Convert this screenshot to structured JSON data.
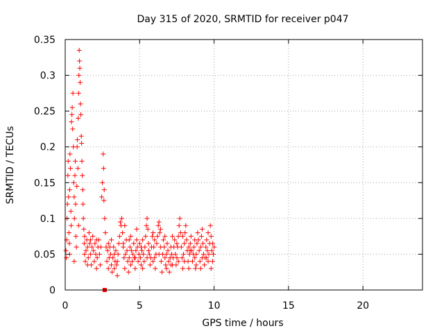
{
  "chart_data": {
    "type": "scatter",
    "title": "Day 315 of 2020, SRMTID for receiver p047",
    "xlabel": "GPS time / hours",
    "ylabel": "SRMTID / TECUs",
    "xlim": [
      0,
      24
    ],
    "ylim": [
      0,
      0.35
    ],
    "xticks": [
      0,
      5,
      10,
      15,
      20
    ],
    "xtick_labels": [
      "0",
      "5",
      "10",
      "15",
      "20"
    ],
    "yticks": [
      0,
      0.05,
      0.1,
      0.15,
      0.2,
      0.25,
      0.3,
      0.35
    ],
    "ytick_labels": [
      "0",
      "0.05",
      "0.1",
      "0.15",
      "0.2",
      "0.25",
      "0.3",
      "0.35"
    ],
    "grid": true,
    "marker": "+",
    "color": "#ff0000",
    "series": [
      {
        "name": "SRMTID",
        "points": [
          [
            0.05,
            0.055
          ],
          [
            0.08,
            0.045
          ],
          [
            0.1,
            0.07
          ],
          [
            0.12,
            0.1
          ],
          [
            0.15,
            0.12
          ],
          [
            0.18,
            0.16
          ],
          [
            0.2,
            0.18
          ],
          [
            0.22,
            0.13
          ],
          [
            0.25,
            0.08
          ],
          [
            0.28,
            0.065
          ],
          [
            0.3,
            0.14
          ],
          [
            0.32,
            0.19
          ],
          [
            0.35,
            0.17
          ],
          [
            0.38,
            0.11
          ],
          [
            0.4,
            0.09
          ],
          [
            0.42,
            0.235
          ],
          [
            0.45,
            0.245
          ],
          [
            0.47,
            0.255
          ],
          [
            0.5,
            0.225
          ],
          [
            0.52,
            0.275
          ],
          [
            0.55,
            0.2
          ],
          [
            0.57,
            0.15
          ],
          [
            0.6,
            0.13
          ],
          [
            0.62,
            0.1
          ],
          [
            0.65,
            0.16
          ],
          [
            0.68,
            0.18
          ],
          [
            0.7,
            0.12
          ],
          [
            0.72,
            0.075
          ],
          [
            0.75,
            0.06
          ],
          [
            0.78,
            0.145
          ],
          [
            0.8,
            0.2
          ],
          [
            0.82,
            0.21
          ],
          [
            0.85,
            0.17
          ],
          [
            0.87,
            0.24
          ],
          [
            0.9,
            0.275
          ],
          [
            0.92,
            0.3
          ],
          [
            0.94,
            0.335
          ],
          [
            0.96,
            0.32
          ],
          [
            0.98,
            0.31
          ],
          [
            1.0,
            0.29
          ],
          [
            1.02,
            0.26
          ],
          [
            1.05,
            0.245
          ],
          [
            1.08,
            0.215
          ],
          [
            1.1,
            0.205
          ],
          [
            1.12,
            0.18
          ],
          [
            1.15,
            0.16
          ],
          [
            1.18,
            0.14
          ],
          [
            1.2,
            0.12
          ],
          [
            1.22,
            0.1
          ],
          [
            1.25,
            0.085
          ],
          [
            1.28,
            0.065
          ],
          [
            1.3,
            0.05
          ],
          [
            1.35,
            0.04
          ],
          [
            1.4,
            0.055
          ],
          [
            1.45,
            0.07
          ],
          [
            1.5,
            0.06
          ],
          [
            1.55,
            0.045
          ],
          [
            1.6,
            0.08
          ],
          [
            1.65,
            0.065
          ],
          [
            1.7,
            0.05
          ],
          [
            1.75,
            0.035
          ],
          [
            1.8,
            0.06
          ],
          [
            1.85,
            0.075
          ],
          [
            1.9,
            0.055
          ],
          [
            1.95,
            0.04
          ],
          [
            2.0,
            0.065
          ],
          [
            2.05,
            0.05
          ],
          [
            2.1,
            0.03
          ],
          [
            2.15,
            0.045
          ],
          [
            2.2,
            0.06
          ],
          [
            2.25,
            0.07
          ],
          [
            2.3,
            0.05
          ],
          [
            2.35,
            0.035
          ],
          [
            2.4,
            0.06
          ],
          [
            2.45,
            0.13
          ],
          [
            2.5,
            0.15
          ],
          [
            2.55,
            0.19
          ],
          [
            2.58,
            0.17
          ],
          [
            2.6,
            0.125
          ],
          [
            2.62,
            0.14
          ],
          [
            2.65,
            0.1
          ],
          [
            2.7,
            0.08
          ],
          [
            2.75,
            0.06
          ],
          [
            2.8,
            0.04
          ],
          [
            2.85,
            0.055
          ],
          [
            2.9,
            0.03
          ],
          [
            2.95,
            0.045
          ],
          [
            3.0,
            0.06
          ],
          [
            3.05,
            0.05
          ],
          [
            3.1,
            0.035
          ],
          [
            3.15,
            0.025
          ],
          [
            3.2,
            0.045
          ],
          [
            3.25,
            0.06
          ],
          [
            3.3,
            0.05
          ],
          [
            3.35,
            0.04
          ],
          [
            3.4,
            0.055
          ],
          [
            3.45,
            0.035
          ],
          [
            3.5,
            0.02
          ],
          [
            3.55,
            0.05
          ],
          [
            3.6,
            0.065
          ],
          [
            3.65,
            0.075
          ],
          [
            3.7,
            0.095
          ],
          [
            3.75,
            0.09
          ],
          [
            3.8,
            0.1
          ],
          [
            3.85,
            0.08
          ],
          [
            3.9,
            0.06
          ],
          [
            3.95,
            0.045
          ],
          [
            4.0,
            0.03
          ],
          [
            4.05,
            0.05
          ],
          [
            4.1,
            0.07
          ],
          [
            4.15,
            0.055
          ],
          [
            4.2,
            0.04
          ],
          [
            4.25,
            0.025
          ],
          [
            4.3,
            0.045
          ],
          [
            4.35,
            0.06
          ],
          [
            4.4,
            0.075
          ],
          [
            4.45,
            0.055
          ],
          [
            4.5,
            0.04
          ],
          [
            4.55,
            0.05
          ],
          [
            4.6,
            0.065
          ],
          [
            4.65,
            0.045
          ],
          [
            4.7,
            0.03
          ],
          [
            4.75,
            0.055
          ],
          [
            4.8,
            0.07
          ],
          [
            4.85,
            0.06
          ],
          [
            4.9,
            0.04
          ],
          [
            4.95,
            0.05
          ],
          [
            5.0,
            0.065
          ],
          [
            5.05,
            0.045
          ],
          [
            5.1,
            0.035
          ],
          [
            5.15,
            0.055
          ],
          [
            5.2,
            0.07
          ],
          [
            5.25,
            0.05
          ],
          [
            5.3,
            0.04
          ],
          [
            5.35,
            0.06
          ],
          [
            5.4,
            0.075
          ],
          [
            5.45,
            0.09
          ],
          [
            5.5,
            0.1
          ],
          [
            5.55,
            0.085
          ],
          [
            5.6,
            0.065
          ],
          [
            5.65,
            0.05
          ],
          [
            5.7,
            0.035
          ],
          [
            5.75,
            0.045
          ],
          [
            5.8,
            0.06
          ],
          [
            5.85,
            0.075
          ],
          [
            5.9,
            0.08
          ],
          [
            5.95,
            0.06
          ],
          [
            6.0,
            0.045
          ],
          [
            6.05,
            0.03
          ],
          [
            6.1,
            0.05
          ],
          [
            6.15,
            0.065
          ],
          [
            6.2,
            0.075
          ],
          [
            6.25,
            0.09
          ],
          [
            6.3,
            0.095
          ],
          [
            6.35,
            0.08
          ],
          [
            6.4,
            0.06
          ],
          [
            6.45,
            0.04
          ],
          [
            6.5,
            0.025
          ],
          [
            6.55,
            0.05
          ],
          [
            6.6,
            0.07
          ],
          [
            6.65,
            0.06
          ],
          [
            6.7,
            0.045
          ],
          [
            6.75,
            0.035
          ],
          [
            6.8,
            0.05
          ],
          [
            6.85,
            0.065
          ],
          [
            6.9,
            0.055
          ],
          [
            6.95,
            0.04
          ],
          [
            7.0,
            0.025
          ],
          [
            7.05,
            0.045
          ],
          [
            7.1,
            0.06
          ],
          [
            7.15,
            0.05
          ],
          [
            7.2,
            0.035
          ],
          [
            7.25,
            0.045
          ],
          [
            7.3,
            0.06
          ],
          [
            7.35,
            0.07
          ],
          [
            7.4,
            0.05
          ],
          [
            7.45,
            0.035
          ],
          [
            7.5,
            0.045
          ],
          [
            7.55,
            0.06
          ],
          [
            7.6,
            0.075
          ],
          [
            7.65,
            0.09
          ],
          [
            7.7,
            0.1
          ],
          [
            7.75,
            0.08
          ],
          [
            7.8,
            0.06
          ],
          [
            7.85,
            0.045
          ],
          [
            7.9,
            0.03
          ],
          [
            7.95,
            0.05
          ],
          [
            8.0,
            0.065
          ],
          [
            8.05,
            0.08
          ],
          [
            8.1,
            0.09
          ],
          [
            8.15,
            0.07
          ],
          [
            8.2,
            0.055
          ],
          [
            8.25,
            0.04
          ],
          [
            8.3,
            0.03
          ],
          [
            8.35,
            0.05
          ],
          [
            8.4,
            0.065
          ],
          [
            8.45,
            0.075
          ],
          [
            8.5,
            0.055
          ],
          [
            8.55,
            0.04
          ],
          [
            8.6,
            0.05
          ],
          [
            8.65,
            0.06
          ],
          [
            8.7,
            0.045
          ],
          [
            8.75,
            0.03
          ],
          [
            8.8,
            0.05
          ],
          [
            8.85,
            0.065
          ],
          [
            8.9,
            0.08
          ],
          [
            8.95,
            0.07
          ],
          [
            9.0,
            0.055
          ],
          [
            9.05,
            0.04
          ],
          [
            9.1,
            0.06
          ],
          [
            9.15,
            0.075
          ],
          [
            9.2,
            0.085
          ],
          [
            9.25,
            0.065
          ],
          [
            9.3,
            0.05
          ],
          [
            9.35,
            0.035
          ],
          [
            9.4,
            0.045
          ],
          [
            9.45,
            0.06
          ],
          [
            9.5,
            0.07
          ],
          [
            9.55,
            0.055
          ],
          [
            9.6,
            0.04
          ],
          [
            9.65,
            0.05
          ],
          [
            9.7,
            0.065
          ],
          [
            9.75,
            0.09
          ],
          [
            9.8,
            0.075
          ],
          [
            9.85,
            0.055
          ],
          [
            9.9,
            0.04
          ],
          [
            9.95,
            0.05
          ],
          [
            10.0,
            0.06
          ],
          [
            0.6,
            0.04
          ],
          [
            1.3,
            0.075
          ],
          [
            1.7,
            0.07
          ],
          [
            2.9,
            0.065
          ],
          [
            3.3,
            0.03
          ],
          [
            4.0,
            0.09
          ],
          [
            4.4,
            0.035
          ],
          [
            4.8,
            0.085
          ],
          [
            5.2,
            0.03
          ],
          [
            5.6,
            0.055
          ],
          [
            6.0,
            0.07
          ],
          [
            6.4,
            0.085
          ],
          [
            6.8,
            0.03
          ],
          [
            7.2,
            0.075
          ],
          [
            7.6,
            0.04
          ],
          [
            8.0,
            0.04
          ],
          [
            8.4,
            0.055
          ],
          [
            8.8,
            0.035
          ],
          [
            9.2,
            0.045
          ],
          [
            9.6,
            0.08
          ],
          [
            9.9,
            0.065
          ],
          [
            0.3,
            0.05
          ],
          [
            0.9,
            0.09
          ],
          [
            1.5,
            0.035
          ],
          [
            2.1,
            0.07
          ],
          [
            3.1,
            0.07
          ],
          [
            3.5,
            0.04
          ],
          [
            3.9,
            0.065
          ],
          [
            4.3,
            0.07
          ],
          [
            4.7,
            0.045
          ],
          [
            5.1,
            0.06
          ],
          [
            5.5,
            0.045
          ],
          [
            5.9,
            0.04
          ],
          [
            6.3,
            0.05
          ],
          [
            6.7,
            0.075
          ],
          [
            7.1,
            0.035
          ],
          [
            7.5,
            0.065
          ],
          [
            7.9,
            0.075
          ],
          [
            8.3,
            0.06
          ],
          [
            8.7,
            0.07
          ],
          [
            9.1,
            0.03
          ],
          [
            9.5,
            0.045
          ],
          [
            9.8,
            0.03
          ]
        ]
      }
    ],
    "annotations": [
      {
        "type": "square-marker",
        "x": 2.65,
        "y": 0.0,
        "color": "#ff0000"
      }
    ]
  }
}
